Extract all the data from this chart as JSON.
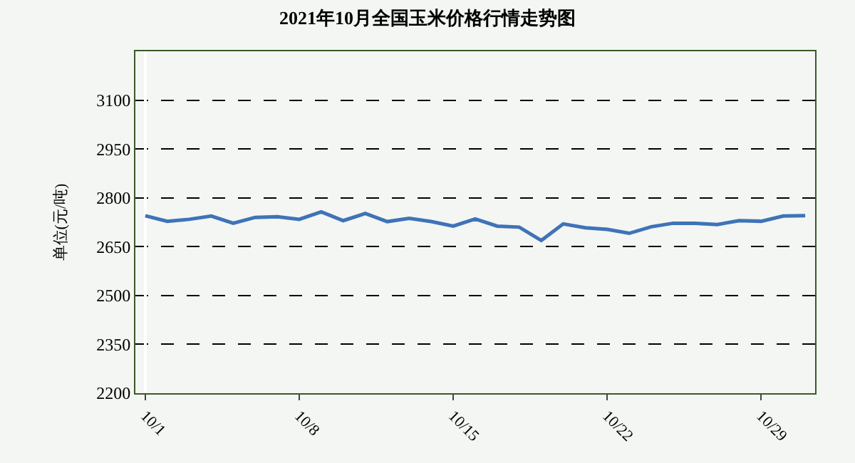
{
  "chart_data": {
    "type": "line",
    "title": "2021年10月全国玉米价格行情走势图",
    "ylabel": "单位(元/吨)",
    "categories": [
      "10/1",
      null,
      null,
      null,
      null,
      null,
      null,
      "10/8",
      null,
      null,
      null,
      null,
      null,
      null,
      "10/15",
      null,
      null,
      null,
      null,
      null,
      null,
      "10/22",
      null,
      null,
      null,
      null,
      null,
      null,
      "10/29",
      null,
      null
    ],
    "series": [
      {
        "color": "#3f73b8",
        "values": [
          2745,
          2728,
          2734,
          2744,
          2722,
          2740,
          2742,
          2734,
          2757,
          2730,
          2752,
          2727,
          2737,
          2727,
          2713,
          2735,
          2713,
          2710,
          2669,
          2720,
          2708,
          2703,
          2691,
          2711,
          2722,
          2722,
          2718,
          2730,
          2728,
          2744,
          2745
        ]
      }
    ],
    "ylim": [
      2200,
      3250
    ],
    "yticks": [
      2200,
      2350,
      2500,
      2650,
      2800,
      2950,
      3100
    ],
    "grid": "y",
    "legend": false,
    "marker": "none",
    "line_style": "solid"
  }
}
